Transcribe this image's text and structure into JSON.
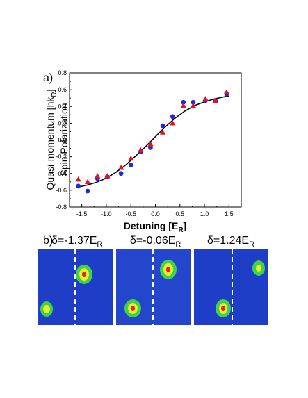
{
  "panel_a_label": "a)",
  "panel_b_label": "b)",
  "chart_data": {
    "type": "scatter",
    "title": "",
    "xlabel": "Detuning [E_R]",
    "xlabel_main": "Detuning [E",
    "xlabel_sub": "R",
    "xlabel_end": "]",
    "ylabel_outer": "Quasi-momentum [hk_R]",
    "ylabel_outer_main": "Quasi-momentum [hk",
    "ylabel_outer_sub": "R",
    "ylabel_outer_end": "]",
    "ylabel_inner": "Spin Polarization",
    "xlim": [
      -1.75,
      1.75
    ],
    "ylim": [
      -0.8,
      0.8
    ],
    "xticks": [
      "-1.5",
      "-1.0",
      "-0.5",
      "0.0",
      "0.5",
      "1.0",
      "1.5"
    ],
    "xtick_values": [
      -1.5,
      -1.0,
      -0.5,
      0.0,
      0.5,
      1.0,
      1.5
    ],
    "yticks": [
      "-0.8",
      "-0.6",
      "-0.4",
      "-0.2",
      "0.0",
      "0.2",
      "0.4",
      "0.6",
      "0.8"
    ],
    "ytick_values": [
      -0.8,
      -0.6,
      -0.4,
      -0.2,
      0.0,
      0.2,
      0.4,
      0.6,
      0.8
    ],
    "grid": false,
    "series": [
      {
        "marker": "circle",
        "color": "#1a2be0",
        "points": [
          [
            -1.57,
            -0.55
          ],
          [
            -1.38,
            -0.61
          ],
          [
            -1.18,
            -0.46
          ],
          [
            -0.98,
            -0.44
          ],
          [
            -0.7,
            -0.4
          ],
          [
            -0.5,
            -0.3
          ],
          [
            -0.3,
            -0.14
          ],
          [
            -0.1,
            -0.09
          ],
          [
            0.15,
            0.17
          ],
          [
            0.35,
            0.28
          ],
          [
            0.57,
            0.45
          ],
          [
            0.77,
            0.45
          ],
          [
            1.02,
            0.47
          ],
          [
            1.22,
            0.47
          ],
          [
            1.45,
            0.55
          ]
        ]
      },
      {
        "marker": "triangle",
        "color": "#e8101c",
        "points": [
          [
            -1.57,
            -0.47
          ],
          [
            -1.38,
            -0.5
          ],
          [
            -1.18,
            -0.43
          ],
          [
            -0.98,
            -0.43
          ],
          [
            -0.7,
            -0.33
          ],
          [
            -0.5,
            -0.22
          ],
          [
            -0.3,
            -0.12
          ],
          [
            -0.1,
            -0.05
          ],
          [
            0.15,
            0.09
          ],
          [
            0.35,
            0.2
          ],
          [
            0.57,
            0.41
          ],
          [
            0.77,
            0.41
          ],
          [
            1.02,
            0.49
          ],
          [
            1.22,
            0.47
          ],
          [
            1.45,
            0.57
          ]
        ]
      }
    ],
    "fit_curve": {
      "color": "#000000",
      "points": [
        [
          -1.6,
          -0.565
        ],
        [
          -1.4,
          -0.54
        ],
        [
          -1.2,
          -0.505
        ],
        [
          -1.0,
          -0.455
        ],
        [
          -0.8,
          -0.385
        ],
        [
          -0.6,
          -0.295
        ],
        [
          -0.4,
          -0.19
        ],
        [
          -0.2,
          -0.08
        ],
        [
          0.0,
          0.04
        ],
        [
          0.2,
          0.155
        ],
        [
          0.4,
          0.26
        ],
        [
          0.6,
          0.345
        ],
        [
          0.8,
          0.41
        ],
        [
          1.0,
          0.455
        ],
        [
          1.2,
          0.49
        ],
        [
          1.4,
          0.515
        ],
        [
          1.5,
          0.525
        ]
      ]
    }
  },
  "images": [
    {
      "label_prefix": "δ=-1.37E",
      "label_sub": "R"
    },
    {
      "label_prefix": "δ=-0.06E",
      "label_sub": "R"
    },
    {
      "label_prefix": "δ=1.24E",
      "label_sub": "R"
    }
  ],
  "colors": {
    "image_background": "#1f3ec8",
    "dashed_line": "#ffffff",
    "cloud_outer": "#3fd24a",
    "cloud_mid": "#e8f02a",
    "cloud_core": "#e8202a"
  }
}
